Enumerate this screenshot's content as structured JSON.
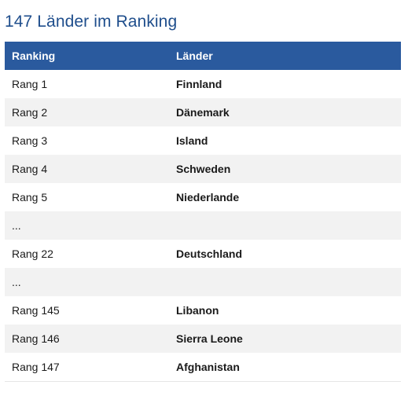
{
  "title": "147 Länder im Ranking",
  "table": {
    "headers": [
      "Ranking",
      "Länder"
    ],
    "rows": [
      {
        "rank": "Rang 1",
        "country": "Finnland"
      },
      {
        "rank": "Rang 2",
        "country": "Dänemark"
      },
      {
        "rank": "Rang 3",
        "country": "Island"
      },
      {
        "rank": "Rang 4",
        "country": "Schweden"
      },
      {
        "rank": "Rang 5",
        "country": "Niederlande"
      },
      {
        "rank": "...",
        "country": ""
      },
      {
        "rank": "Rang 22",
        "country": "Deutschland"
      },
      {
        "rank": "...",
        "country": ""
      },
      {
        "rank": "Rang 145",
        "country": "Libanon"
      },
      {
        "rank": "Rang 146",
        "country": "Sierra Leone"
      },
      {
        "rank": "Rang 147",
        "country": "Afghanistan"
      }
    ]
  },
  "colors": {
    "title": "#1f4e8c",
    "header_bg": "#2a5a9e",
    "stripe": "#f2f2f2"
  }
}
